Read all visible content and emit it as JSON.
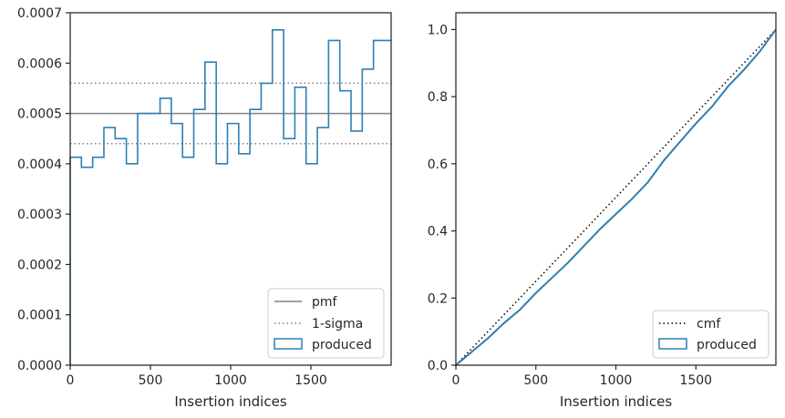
{
  "chart_data": [
    {
      "type": "step",
      "xlabel": "Insertion indices",
      "ylabel": "",
      "xlim": [
        0,
        2000
      ],
      "ylim": [
        0,
        0.0007
      ],
      "xticks": [
        0,
        500,
        1000,
        1500
      ],
      "yticks": [
        0.0,
        0.0001,
        0.0002,
        0.0003,
        0.0004,
        0.0005,
        0.0006,
        0.0007
      ],
      "ytick_labels": [
        "0.0000",
        "0.0001",
        "0.0002",
        "0.0003",
        "0.0004",
        "0.0005",
        "0.0006",
        "0.0007"
      ],
      "pmf": 0.0005,
      "sigma_band": [
        0.00044,
        0.00056
      ],
      "bin_edges": [
        0,
        70,
        140,
        210,
        280,
        350,
        420,
        490,
        560,
        630,
        700,
        770,
        840,
        910,
        980,
        1050,
        1120,
        1190,
        1260,
        1330,
        1400,
        1470,
        1540,
        1610,
        1680,
        1750,
        1820,
        1890,
        2000
      ],
      "produced": [
        0.000413,
        0.000393,
        0.000413,
        0.000472,
        0.00045,
        0.0004,
        0.0005,
        0.0005,
        0.00053,
        0.00048,
        0.000413,
        0.000508,
        0.000602,
        0.0004,
        0.00048,
        0.00042,
        0.000508,
        0.00056,
        0.000666,
        0.00045,
        0.000552,
        0.0004,
        0.000472,
        0.000645,
        0.000545,
        0.000465,
        0.000588,
        0.000645
      ],
      "legend": {
        "position": "lower-right",
        "entries": [
          "pmf",
          "1-sigma",
          "produced"
        ]
      },
      "colors": {
        "pmf": "#808080",
        "sigma": "#808080",
        "produced": "#2f7fb3"
      }
    },
    {
      "type": "step",
      "xlabel": "Insertion indices",
      "ylabel": "",
      "xlim": [
        0,
        2000
      ],
      "ylim": [
        0,
        1.05
      ],
      "xticks": [
        0,
        500,
        1000,
        1500
      ],
      "yticks": [
        0.0,
        0.2,
        0.4,
        0.6,
        0.8,
        1.0
      ],
      "ytick_labels": [
        "0.0",
        "0.2",
        "0.4",
        "0.6",
        "0.8",
        "1.0"
      ],
      "cmf": [
        [
          0,
          0
        ],
        [
          2000,
          1
        ]
      ],
      "produced": {
        "x": [
          0,
          100,
          200,
          300,
          400,
          500,
          600,
          700,
          800,
          900,
          1000,
          1100,
          1200,
          1300,
          1400,
          1500,
          1600,
          1700,
          1800,
          1900,
          2000
        ],
        "y": [
          0,
          0.04,
          0.08,
          0.125,
          0.165,
          0.215,
          0.26,
          0.305,
          0.355,
          0.405,
          0.45,
          0.495,
          0.545,
          0.61,
          0.665,
          0.72,
          0.77,
          0.83,
          0.88,
          0.935,
          1.0
        ]
      },
      "legend": {
        "position": "lower-right",
        "entries": [
          "cmf",
          "produced"
        ]
      },
      "colors": {
        "cmf": "#000000",
        "produced": "#2f7fb3"
      }
    }
  ]
}
